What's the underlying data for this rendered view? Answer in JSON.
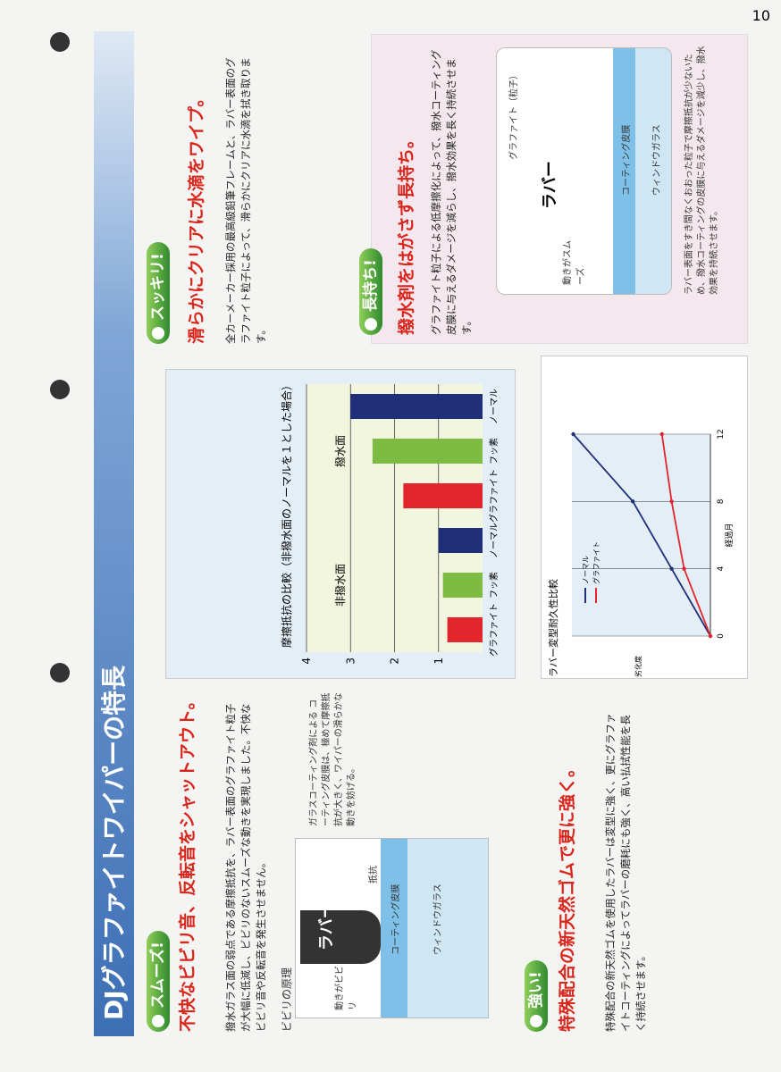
{
  "page_number": "10",
  "title": "DJグラファイトワイパーの特長",
  "smooth": {
    "badge": "スムーズ!",
    "headline": "不快なビビリ音、反転音をシャットアウト。",
    "body": "撥水ガラス面の弱点である摩擦抵抗を、ラバー表面のグラファイト粒子が大幅に低減し、ビビリのないスムーズな動きを実現しました。不快なビビリ音や反転音を発生させません。",
    "diagram_title": "ビビリの原理",
    "callout": "ガラスコーティング剤による コーティング皮膜は、極めて摩擦抵抗が大きく、ワイパーの滑らかな動きを妨げる。",
    "labels": [
      "ラバー",
      "抵抗",
      "コーティング皮膜",
      "ウィンドウガラス",
      "動きがビビリ"
    ]
  },
  "sukkiri": {
    "badge": "スッキリ!",
    "headline": "滑らかにクリアに水滴をワイプ。",
    "body": "全カーメーカー採用の最高級鉛筆フレームと、ラバー表面のグラファイト粒子によって、滑らかにクリアに水滴を拭き取ります。"
  },
  "nagamochi": {
    "badge": "長持ち!",
    "headline": "撥水剤をはがさず長持ち。",
    "body": "グラファイト粒子による低摩擦化によって、撥水コーティング皮膜に与えるダメージを減らし、撥水効果を長く持続させます。",
    "labels": [
      "グラファイト（粒子）",
      "ラバー",
      "コーティング皮膜",
      "ウィンドウガラス",
      "動きがスムーズ"
    ],
    "caption": "ラバー表面をすき間なくおおった粒子で摩擦抵抗が少ないため、撥水コーティングの皮膜に与えるダメージを減少し、撥水効果を持続させます。"
  },
  "tsuyoi": {
    "badge": "強い!",
    "headline": "特殊配合の新天然ゴムで更に強く。",
    "body": "特殊配合の新天然ゴムを使用したラバーは変型に強く、更にグラファイトコーティングによってラバーの磨耗にも強く、高い払拭性能を長く持続させます。"
  },
  "chart_data": [
    {
      "type": "bar",
      "title": "摩擦抵抗の比較（非撥水面のノーマルを１とした場合）",
      "categories": [
        "グラファイト",
        "フッ素",
        "ノーマル",
        "グラファイト",
        "フッ素",
        "ノーマル"
      ],
      "values": [
        0.8,
        0.9,
        1.0,
        1.8,
        2.5,
        3.0
      ],
      "colors": [
        "#e3262b",
        "#7dbb42",
        "#1f2f7a",
        "#e3262b",
        "#7dbb42",
        "#1f2f7a"
      ],
      "annotations": [
        "非撥水面",
        "撥水面"
      ],
      "ylim": [
        0,
        4
      ],
      "yticks": [
        1,
        2,
        3,
        4
      ],
      "grid": true
    },
    {
      "type": "line",
      "title": "ラバー変型耐久性比較",
      "xlabel": "経過月",
      "ylabel": "劣化度",
      "x": [
        0,
        4,
        8,
        12
      ],
      "xlim": [
        0,
        12
      ],
      "xticks": [
        0,
        4,
        8,
        12
      ],
      "ylim": [
        0,
        100
      ],
      "grid": true,
      "series": [
        {
          "name": "ノーマル",
          "color": "#1f2f7a",
          "values": [
            0,
            28,
            56,
            99
          ]
        },
        {
          "name": "グラファイト",
          "color": "#e3262b",
          "values": [
            0,
            19,
            28,
            35
          ]
        }
      ]
    }
  ]
}
